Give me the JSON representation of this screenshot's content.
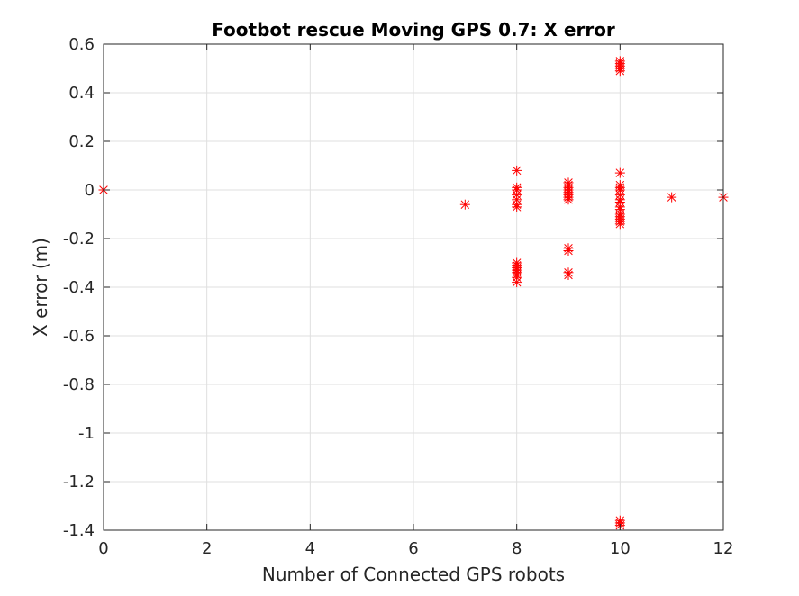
{
  "chart_data": {
    "type": "scatter",
    "title": "Footbot rescue Moving GPS 0.7: X error",
    "xlabel": "Number of Connected GPS robots",
    "ylabel": "X error (m)",
    "xlim": [
      0,
      12
    ],
    "ylim": [
      -1.4,
      0.6
    ],
    "xticks": [
      0,
      2,
      4,
      6,
      8,
      10,
      12
    ],
    "xtick_labels": [
      "0",
      "2",
      "4",
      "6",
      "8",
      "10",
      "12"
    ],
    "yticks": [
      0.6,
      0.4,
      0.2,
      0,
      -0.2,
      -0.4,
      -0.6,
      -0.8,
      -1,
      -1.2,
      -1.4
    ],
    "ytick_labels": [
      "0.6",
      "0.4",
      "0.2",
      "0",
      "-0.2",
      "-0.4",
      "-0.6",
      "-0.8",
      "-1",
      "-1.2",
      "-1.4"
    ],
    "grid": true,
    "marker": "asterisk",
    "marker_color": "#ff0000",
    "points": [
      [
        0,
        0.0
      ],
      [
        7,
        -0.06
      ],
      [
        8,
        0.08
      ],
      [
        8,
        0.01
      ],
      [
        8,
        0.0
      ],
      [
        8,
        -0.02
      ],
      [
        8,
        -0.04
      ],
      [
        8,
        -0.06
      ],
      [
        8,
        -0.07
      ],
      [
        8,
        -0.3
      ],
      [
        8,
        -0.31
      ],
      [
        8,
        -0.32
      ],
      [
        8,
        -0.33
      ],
      [
        8,
        -0.34
      ],
      [
        8,
        -0.35
      ],
      [
        8,
        -0.36
      ],
      [
        8,
        -0.38
      ],
      [
        9,
        0.03
      ],
      [
        9,
        0.02
      ],
      [
        9,
        0.01
      ],
      [
        9,
        0.0
      ],
      [
        9,
        -0.01
      ],
      [
        9,
        -0.02
      ],
      [
        9,
        -0.03
      ],
      [
        9,
        -0.04
      ],
      [
        9,
        -0.24
      ],
      [
        9,
        -0.25
      ],
      [
        9,
        -0.34
      ],
      [
        9,
        -0.35
      ],
      [
        10,
        0.53
      ],
      [
        10,
        0.52
      ],
      [
        10,
        0.51
      ],
      [
        10,
        0.5
      ],
      [
        10,
        0.49
      ],
      [
        10,
        0.07
      ],
      [
        10,
        0.02
      ],
      [
        10,
        0.01
      ],
      [
        10,
        0.0
      ],
      [
        10,
        -0.02
      ],
      [
        10,
        -0.04
      ],
      [
        10,
        -0.05
      ],
      [
        10,
        -0.07
      ],
      [
        10,
        -0.08
      ],
      [
        10,
        -0.1
      ],
      [
        10,
        -0.11
      ],
      [
        10,
        -0.12
      ],
      [
        10,
        -0.13
      ],
      [
        10,
        -0.14
      ],
      [
        10,
        -1.36
      ],
      [
        10,
        -1.37
      ],
      [
        10,
        -1.38
      ],
      [
        11,
        -0.03
      ],
      [
        12,
        -0.03
      ]
    ]
  }
}
